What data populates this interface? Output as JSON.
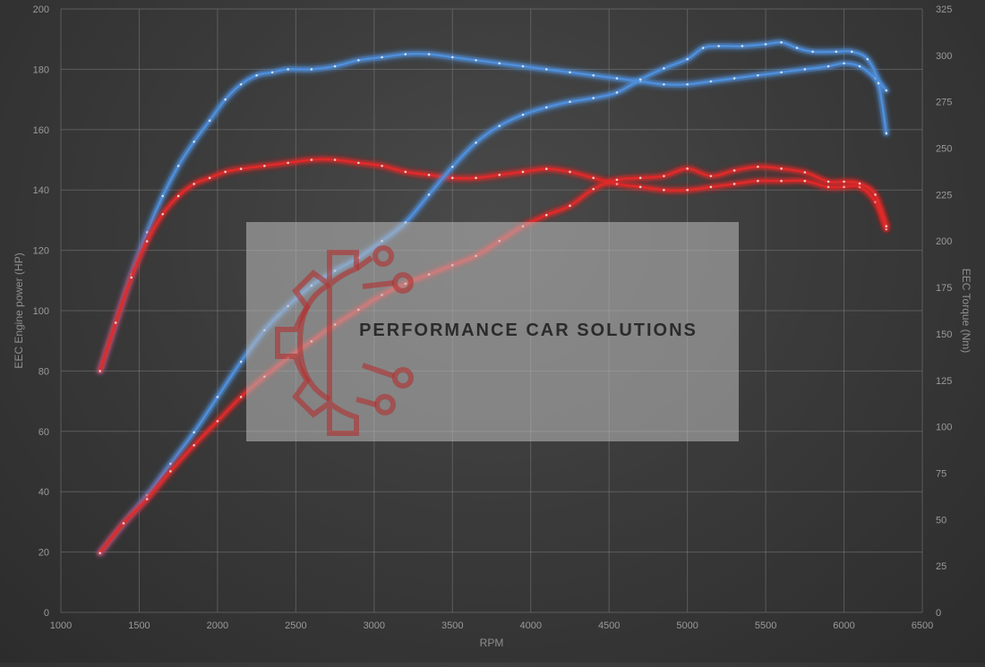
{
  "chart_data": {
    "type": "line",
    "xlabel": "RPM",
    "ylabel_left": "EEC Engine power (HP)",
    "ylabel_right": "EEC Torque (Nm)",
    "xlim": [
      1000,
      6500
    ],
    "xticks": [
      1000,
      1500,
      2000,
      2500,
      3000,
      3500,
      4000,
      4500,
      5000,
      5500,
      6000,
      6500
    ],
    "ylim_left": [
      0,
      200
    ],
    "yticks_left": [
      0,
      20,
      40,
      60,
      80,
      100,
      120,
      140,
      160,
      180,
      200
    ],
    "ylim_right": [
      0,
      325
    ],
    "yticks_right": [
      0,
      25,
      50,
      75,
      100,
      125,
      150,
      175,
      200,
      225,
      250,
      275,
      300,
      325
    ],
    "grid": true,
    "series": [
      {
        "color": "#4f8fdc",
        "axis": "left",
        "points": [
          [
            1250,
            80
          ],
          [
            1350,
            96
          ],
          [
            1450,
            112
          ],
          [
            1550,
            126
          ],
          [
            1650,
            138
          ],
          [
            1750,
            148
          ],
          [
            1850,
            156
          ],
          [
            1950,
            163
          ],
          [
            2050,
            170
          ],
          [
            2150,
            175
          ],
          [
            2250,
            178
          ],
          [
            2350,
            179
          ],
          [
            2450,
            180
          ],
          [
            2600,
            180
          ],
          [
            2750,
            181
          ],
          [
            2900,
            183
          ],
          [
            3050,
            184
          ],
          [
            3200,
            185
          ],
          [
            3350,
            185
          ],
          [
            3500,
            184
          ],
          [
            3650,
            183
          ],
          [
            3800,
            182
          ],
          [
            3950,
            181
          ],
          [
            4100,
            180
          ],
          [
            4250,
            179
          ],
          [
            4400,
            178
          ],
          [
            4550,
            177
          ],
          [
            4700,
            176
          ],
          [
            4850,
            175
          ],
          [
            5000,
            175
          ],
          [
            5150,
            176
          ],
          [
            5300,
            177
          ],
          [
            5450,
            178
          ],
          [
            5600,
            179
          ],
          [
            5750,
            180
          ],
          [
            5900,
            181
          ],
          [
            6000,
            182
          ],
          [
            6100,
            181
          ],
          [
            6200,
            177
          ],
          [
            6270,
            173
          ]
        ]
      },
      {
        "color": "#e02a2a",
        "axis": "left",
        "points": [
          [
            1250,
            80
          ],
          [
            1350,
            96
          ],
          [
            1450,
            111
          ],
          [
            1550,
            123
          ],
          [
            1650,
            132
          ],
          [
            1750,
            138
          ],
          [
            1850,
            142
          ],
          [
            1950,
            144
          ],
          [
            2050,
            146
          ],
          [
            2150,
            147
          ],
          [
            2300,
            148
          ],
          [
            2450,
            149
          ],
          [
            2600,
            150
          ],
          [
            2750,
            150
          ],
          [
            2900,
            149
          ],
          [
            3050,
            148
          ],
          [
            3200,
            146
          ],
          [
            3350,
            145
          ],
          [
            3500,
            144
          ],
          [
            3650,
            144
          ],
          [
            3800,
            145
          ],
          [
            3950,
            146
          ],
          [
            4100,
            147
          ],
          [
            4250,
            146
          ],
          [
            4400,
            144
          ],
          [
            4550,
            142
          ],
          [
            4700,
            141
          ],
          [
            4850,
            140
          ],
          [
            5000,
            140
          ],
          [
            5150,
            141
          ],
          [
            5300,
            142
          ],
          [
            5450,
            143
          ],
          [
            5600,
            143
          ],
          [
            5750,
            143
          ],
          [
            5900,
            141
          ],
          [
            6000,
            141
          ],
          [
            6100,
            141
          ],
          [
            6200,
            136
          ],
          [
            6270,
            127
          ]
        ]
      },
      {
        "color": "#4f8fdc",
        "axis": "right",
        "points": [
          [
            1250,
            32
          ],
          [
            1400,
            48
          ],
          [
            1550,
            63
          ],
          [
            1700,
            80
          ],
          [
            1850,
            97
          ],
          [
            2000,
            116
          ],
          [
            2150,
            135
          ],
          [
            2300,
            152
          ],
          [
            2450,
            165
          ],
          [
            2600,
            176
          ],
          [
            2750,
            184
          ],
          [
            2900,
            191
          ],
          [
            3050,
            200
          ],
          [
            3200,
            210
          ],
          [
            3350,
            225
          ],
          [
            3500,
            240
          ],
          [
            3650,
            253
          ],
          [
            3800,
            262
          ],
          [
            3950,
            268
          ],
          [
            4100,
            272
          ],
          [
            4250,
            275
          ],
          [
            4400,
            277
          ],
          [
            4550,
            280
          ],
          [
            4700,
            287
          ],
          [
            4850,
            293
          ],
          [
            5000,
            298
          ],
          [
            5100,
            304
          ],
          [
            5200,
            305
          ],
          [
            5350,
            305
          ],
          [
            5500,
            306
          ],
          [
            5600,
            307
          ],
          [
            5700,
            304
          ],
          [
            5800,
            302
          ],
          [
            5950,
            302
          ],
          [
            6050,
            302
          ],
          [
            6150,
            298
          ],
          [
            6220,
            285
          ],
          [
            6270,
            258
          ]
        ]
      },
      {
        "color": "#e02a2a",
        "axis": "right",
        "points": [
          [
            1250,
            32
          ],
          [
            1400,
            48
          ],
          [
            1550,
            61
          ],
          [
            1700,
            76
          ],
          [
            1850,
            90
          ],
          [
            2000,
            103
          ],
          [
            2150,
            116
          ],
          [
            2300,
            127
          ],
          [
            2450,
            137
          ],
          [
            2600,
            146
          ],
          [
            2750,
            155
          ],
          [
            2900,
            163
          ],
          [
            3050,
            171
          ],
          [
            3200,
            177
          ],
          [
            3350,
            182
          ],
          [
            3500,
            187
          ],
          [
            3650,
            192
          ],
          [
            3800,
            200
          ],
          [
            3950,
            208
          ],
          [
            4100,
            214
          ],
          [
            4250,
            219
          ],
          [
            4400,
            228
          ],
          [
            4550,
            233
          ],
          [
            4700,
            234
          ],
          [
            4850,
            235
          ],
          [
            5000,
            239
          ],
          [
            5150,
            235
          ],
          [
            5300,
            238
          ],
          [
            5450,
            240
          ],
          [
            5600,
            239
          ],
          [
            5750,
            237
          ],
          [
            5900,
            232
          ],
          [
            6000,
            232
          ],
          [
            6100,
            231
          ],
          [
            6200,
            225
          ],
          [
            6270,
            208
          ]
        ]
      }
    ]
  },
  "watermark": {
    "text": "PERFORMANCE CAR SOLUTIONS",
    "logo_icon": "gear-circuit-logo",
    "logo_color": "#b33030"
  }
}
